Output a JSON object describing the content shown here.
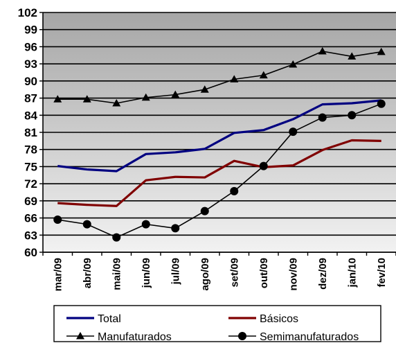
{
  "chart_data": {
    "type": "line",
    "categories": [
      "mar/09",
      "abr/09",
      "mai/09",
      "jun/09",
      "jul/09",
      "ago/09",
      "set/09",
      "out/09",
      "nov/09",
      "dez/09",
      "jan/10",
      "fev/10"
    ],
    "y_ticks": [
      "60",
      "63",
      "66",
      "69",
      "72",
      "75",
      "78",
      "81",
      "84",
      "87",
      "90",
      "93",
      "96",
      "99",
      "102"
    ],
    "ylim": [
      60,
      102
    ],
    "grid": true,
    "legend_position": "bottom",
    "series": [
      {
        "name": "Total",
        "color": "#000080",
        "marker": "none",
        "values": [
          75.1,
          74.5,
          74.2,
          77.2,
          77.5,
          78.1,
          80.9,
          81.4,
          83.3,
          85.9,
          86.1,
          86.6
        ]
      },
      {
        "name": "Básicos",
        "color": "#800000",
        "marker": "none",
        "values": [
          68.6,
          68.3,
          68.1,
          72.6,
          73.2,
          73.1,
          76.0,
          74.9,
          75.2,
          77.9,
          79.6,
          79.5
        ]
      },
      {
        "name": "Manufaturados",
        "color": "#000000",
        "marker": "triangle",
        "values": [
          86.8,
          86.8,
          86.1,
          87.1,
          87.6,
          88.5,
          90.3,
          91.0,
          92.9,
          95.2,
          94.3,
          95.1
        ]
      },
      {
        "name": "Semimanufaturados",
        "color": "#000000",
        "marker": "circle",
        "values": [
          65.7,
          64.9,
          62.6,
          64.9,
          64.2,
          67.2,
          70.7,
          75.1,
          81.1,
          83.6,
          84.0,
          86.0
        ]
      }
    ]
  }
}
